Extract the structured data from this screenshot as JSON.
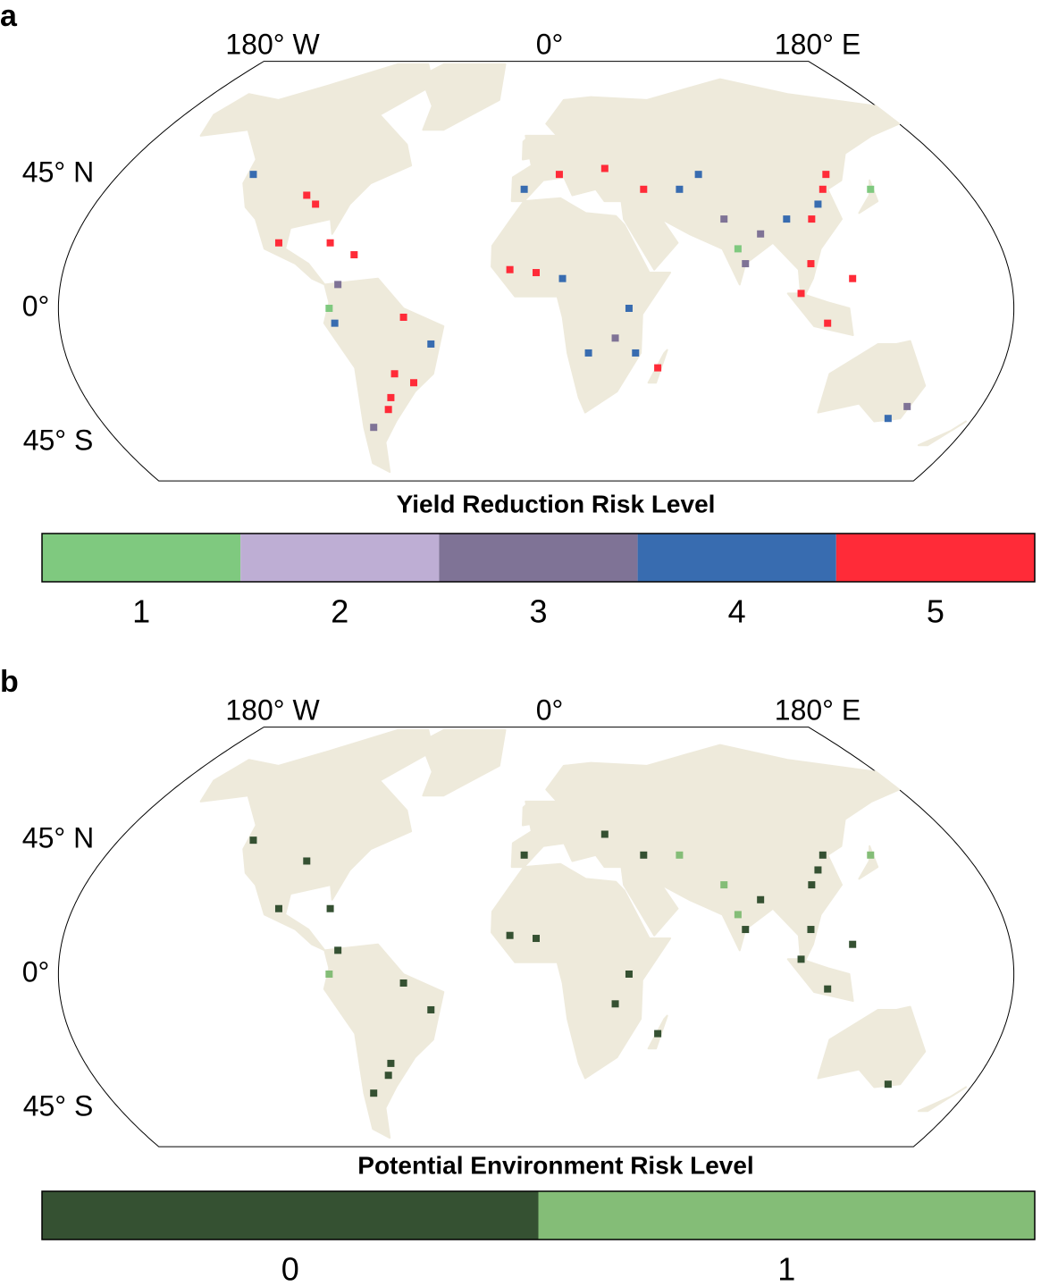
{
  "panels": [
    {
      "label": "a",
      "lon_labels": [
        "180° W",
        "0°",
        "180° E"
      ],
      "lat_labels": [
        "45° N",
        "0°",
        "45° S"
      ],
      "legend": {
        "title": "Yield Reduction Risk Level",
        "levels": [
          1,
          2,
          3,
          4,
          5
        ],
        "colors": [
          "#7fc97f",
          "#beaed4",
          "#7f7396",
          "#386cb0",
          "#ff2b38"
        ]
      },
      "points": [
        {
          "lon": -95,
          "lat": 38,
          "level": 5
        },
        {
          "lon": -90,
          "lat": 35,
          "level": 5
        },
        {
          "lon": -122,
          "lat": 45,
          "level": 4
        },
        {
          "lon": -100,
          "lat": 22,
          "level": 5
        },
        {
          "lon": -80,
          "lat": 22,
          "level": 5
        },
        {
          "lon": -70,
          "lat": 18,
          "level": 5
        },
        {
          "lon": -75,
          "lat": 8,
          "level": 3
        },
        {
          "lon": -78,
          "lat": 0,
          "level": 1
        },
        {
          "lon": -76,
          "lat": -5,
          "level": 4
        },
        {
          "lon": -50,
          "lat": -3,
          "level": 5
        },
        {
          "lon": -40,
          "lat": -12,
          "level": 4
        },
        {
          "lon": -55,
          "lat": -22,
          "level": 5
        },
        {
          "lon": -58,
          "lat": -30,
          "level": 5
        },
        {
          "lon": -60,
          "lat": -34,
          "level": 5
        },
        {
          "lon": -68,
          "lat": -40,
          "level": 3
        },
        {
          "lon": -48,
          "lat": -25,
          "level": 5
        },
        {
          "lon": -5,
          "lat": 40,
          "level": 4
        },
        {
          "lon": 10,
          "lat": 45,
          "level": 5
        },
        {
          "lon": 30,
          "lat": 47,
          "level": 5
        },
        {
          "lon": 45,
          "lat": 40,
          "level": 5
        },
        {
          "lon": 60,
          "lat": 40,
          "level": 4
        },
        {
          "lon": 70,
          "lat": 45,
          "level": 4
        },
        {
          "lon": 75,
          "lat": 30,
          "level": 3
        },
        {
          "lon": 78,
          "lat": 20,
          "level": 1
        },
        {
          "lon": 80,
          "lat": 15,
          "level": 3
        },
        {
          "lon": 88,
          "lat": 25,
          "level": 3
        },
        {
          "lon": 100,
          "lat": 30,
          "level": 4
        },
        {
          "lon": 110,
          "lat": 30,
          "level": 5
        },
        {
          "lon": 115,
          "lat": 35,
          "level": 4
        },
        {
          "lon": 120,
          "lat": 40,
          "level": 5
        },
        {
          "lon": 125,
          "lat": 45,
          "level": 5
        },
        {
          "lon": 105,
          "lat": 15,
          "level": 5
        },
        {
          "lon": 100,
          "lat": 5,
          "level": 5
        },
        {
          "lon": 120,
          "lat": 10,
          "level": 5
        },
        {
          "lon": 110,
          "lat": -5,
          "level": 5
        },
        {
          "lon": 140,
          "lat": 40,
          "level": 1
        },
        {
          "lon": 150,
          "lat": -33,
          "level": 3
        },
        {
          "lon": 145,
          "lat": -37,
          "level": 4
        },
        {
          "lon": 0,
          "lat": 12,
          "level": 5
        },
        {
          "lon": 10,
          "lat": 10,
          "level": 4
        },
        {
          "lon": -10,
          "lat": 13,
          "level": 5
        },
        {
          "lon": 35,
          "lat": 0,
          "level": 4
        },
        {
          "lon": 30,
          "lat": -10,
          "level": 3
        },
        {
          "lon": 47,
          "lat": -20,
          "level": 5
        },
        {
          "lon": 38,
          "lat": -15,
          "level": 4
        },
        {
          "lon": 20,
          "lat": -15,
          "level": 4
        }
      ]
    },
    {
      "label": "b",
      "lon_labels": [
        "180° W",
        "0°",
        "180° E"
      ],
      "lat_labels": [
        "45° N",
        "0°",
        "45° S"
      ],
      "legend": {
        "title": "Potential Environment Risk Level",
        "levels": [
          0,
          1
        ],
        "colors": [
          "#355132",
          "#84bd77"
        ]
      },
      "points": [
        {
          "lon": -95,
          "lat": 38,
          "level": 0
        },
        {
          "lon": -122,
          "lat": 45,
          "level": 0
        },
        {
          "lon": -100,
          "lat": 22,
          "level": 0
        },
        {
          "lon": -80,
          "lat": 22,
          "level": 0
        },
        {
          "lon": -75,
          "lat": 8,
          "level": 0
        },
        {
          "lon": -78,
          "lat": 0,
          "level": 1
        },
        {
          "lon": -50,
          "lat": -3,
          "level": 0
        },
        {
          "lon": -40,
          "lat": -12,
          "level": 0
        },
        {
          "lon": -58,
          "lat": -30,
          "level": 0
        },
        {
          "lon": -60,
          "lat": -34,
          "level": 0
        },
        {
          "lon": -68,
          "lat": -40,
          "level": 0
        },
        {
          "lon": -5,
          "lat": 40,
          "level": 0
        },
        {
          "lon": 30,
          "lat": 47,
          "level": 0
        },
        {
          "lon": 45,
          "lat": 40,
          "level": 0
        },
        {
          "lon": 60,
          "lat": 40,
          "level": 1
        },
        {
          "lon": 75,
          "lat": 30,
          "level": 1
        },
        {
          "lon": 78,
          "lat": 20,
          "level": 1
        },
        {
          "lon": 80,
          "lat": 15,
          "level": 0
        },
        {
          "lon": 88,
          "lat": 25,
          "level": 0
        },
        {
          "lon": 110,
          "lat": 30,
          "level": 0
        },
        {
          "lon": 115,
          "lat": 35,
          "level": 0
        },
        {
          "lon": 120,
          "lat": 40,
          "level": 0
        },
        {
          "lon": 105,
          "lat": 15,
          "level": 0
        },
        {
          "lon": 100,
          "lat": 5,
          "level": 0
        },
        {
          "lon": 120,
          "lat": 10,
          "level": 0
        },
        {
          "lon": 110,
          "lat": -5,
          "level": 0
        },
        {
          "lon": 140,
          "lat": 40,
          "level": 1
        },
        {
          "lon": 145,
          "lat": -37,
          "level": 0
        },
        {
          "lon": 0,
          "lat": 12,
          "level": 0
        },
        {
          "lon": -10,
          "lat": 13,
          "level": 0
        },
        {
          "lon": 35,
          "lat": 0,
          "level": 0
        },
        {
          "lon": 30,
          "lat": -10,
          "level": 0
        },
        {
          "lon": 47,
          "lat": -20,
          "level": 0
        }
      ]
    }
  ]
}
